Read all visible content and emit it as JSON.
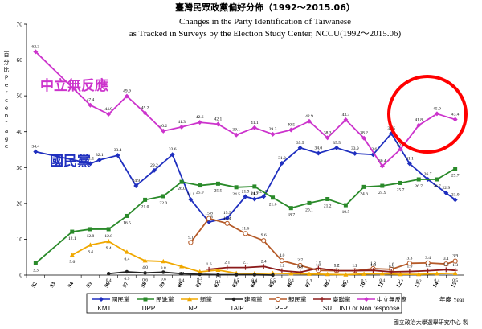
{
  "chart_data": {
    "type": "line",
    "title_zh": "臺灣民眾政黨偏好分佈（1992～2015.06）",
    "title_en_line1": "Changes in the Party Identification of Taiwanese",
    "title_en_line2": "as Tracked in Surveys by the Election Study Center, NCCU(1992～2015.06)",
    "ylabel_zh": "百分比",
    "ylabel_en": "Percentage",
    "xlabel": "年度 Year",
    "credit": "國立政治大學選舉研究中心 製",
    "ylim": [
      0,
      70
    ],
    "yticks": [
      "0",
      "10",
      "20",
      "30",
      "40",
      "50",
      "60",
      "70"
    ],
    "grid": false,
    "x": [
      "92",
      "93",
      "94",
      "95",
      "96",
      "97",
      "98",
      "99",
      "00",
      "01",
      "02",
      "03",
      "04",
      "05",
      "06",
      "07",
      "08",
      "09",
      "10",
      "11",
      "12",
      "13",
      "14",
      "15"
    ],
    "annotations": [
      {
        "text": "中立無反應",
        "color": "#cc33cc"
      },
      {
        "text": "國民黨",
        "color": "#1f2fbf"
      }
    ],
    "series": [
      {
        "name_zh": "國民黨",
        "name_en": "KMT",
        "color": "#1f2fbf",
        "marker": "diamond",
        "points": [
          [
            0,
            34.4
          ],
          [
            3,
            31.1
          ],
          [
            3.5,
            32.1
          ],
          [
            4.5,
            33.4
          ],
          [
            5.5,
            24.9
          ],
          [
            6.5,
            29.2
          ],
          [
            7.5,
            33.6
          ],
          [
            8.5,
            21.1
          ],
          [
            9.5,
            14.8
          ],
          [
            10.5,
            15.9
          ],
          [
            11.5,
            21.9
          ],
          [
            12,
            21.2
          ],
          [
            12.5,
            21.9
          ],
          [
            13.5,
            31.2
          ],
          [
            14.5,
            35.5
          ],
          [
            15.5,
            34.0
          ],
          [
            16.5,
            35.5
          ],
          [
            17.5,
            33.9
          ],
          [
            18.5,
            33.6
          ],
          [
            19.5,
            39.5
          ],
          [
            20.5,
            31.1
          ],
          [
            21.5,
            26.7
          ],
          [
            22.5,
            22.9
          ],
          [
            23,
            21.0
          ]
        ],
        "labels": [
          "34.4",
          "31.1",
          "32.1",
          "33.4",
          "24.9",
          "29.2",
          "33.6",
          "21.1",
          "14.8",
          "15.9",
          "21.9",
          "21.2",
          "21.9",
          "31.2",
          "35.5",
          "34.0",
          "35.5",
          "33.9",
          "33.6",
          "39.5",
          "31.1",
          "26.7",
          "22.9",
          "21.0"
        ]
      },
      {
        "name_zh": "民進黨",
        "name_en": "DPP",
        "color": "#2a8a2a",
        "marker": "square",
        "points": [
          [
            0,
            3.3
          ],
          [
            2,
            12.1
          ],
          [
            3,
            12.8
          ],
          [
            4,
            12.8
          ],
          [
            5,
            16.5
          ],
          [
            6,
            21.0
          ],
          [
            7,
            22.0
          ],
          [
            8,
            26.0
          ],
          [
            9,
            25.0
          ],
          [
            10,
            25.5
          ],
          [
            11,
            24.5
          ],
          [
            12,
            24.7
          ],
          [
            13,
            21.6
          ],
          [
            14,
            18.7
          ],
          [
            15,
            20.1
          ],
          [
            16,
            21.2
          ],
          [
            17,
            19.5
          ],
          [
            18,
            24.6
          ],
          [
            19,
            24.9
          ],
          [
            20,
            25.7
          ],
          [
            21,
            26.7
          ],
          [
            22,
            26.7
          ],
          [
            23,
            29.7
          ]
        ],
        "labels": [
          "3.3",
          "12.1",
          "12.8",
          "12.8",
          "16.5",
          "21.0",
          "22.0",
          "26.0",
          "25.0",
          "25.5",
          "24.5",
          "24.7",
          "21.6",
          "18.7",
          "20.1",
          "21.2",
          "19.5",
          "24.6",
          "24.9",
          "25.7",
          "26.7",
          "26.7",
          "29.7"
        ]
      },
      {
        "name_zh": "新黨",
        "name_en": "NP",
        "color": "#f0a800",
        "marker": "triangle",
        "points": [
          [
            2,
            5.6
          ],
          [
            3,
            8.4
          ],
          [
            4,
            9.4
          ],
          [
            5,
            6.4
          ],
          [
            6,
            4.0
          ],
          [
            7,
            3.8
          ],
          [
            8,
            2.4
          ],
          [
            9,
            0.9
          ],
          [
            10,
            1.4
          ],
          [
            11,
            0.5
          ],
          [
            12,
            0.4
          ],
          [
            13,
            0.5
          ],
          [
            14,
            0.4
          ],
          [
            15,
            0.3
          ],
          [
            16,
            0.2
          ],
          [
            17,
            0.1
          ],
          [
            18,
            0.3
          ],
          [
            19,
            0.4
          ],
          [
            20,
            0.2
          ],
          [
            21,
            0.2
          ],
          [
            22,
            0.4
          ],
          [
            23,
            0.5
          ]
        ],
        "labels": [
          "5.6",
          "8.4",
          "9.4",
          "6.4",
          "4.0",
          "3.8",
          "2.4",
          "0.9",
          "1.4",
          "0.5",
          "0.4",
          "0.5",
          "0.4",
          "0.3",
          "0.2",
          "0.1",
          "0.3",
          "0.4",
          "0.2",
          "0.2",
          "0.4",
          "0.5"
        ]
      },
      {
        "name_zh": "建國黨",
        "name_en": "TAIP",
        "color": "#222222",
        "marker": "circle",
        "points": [
          [
            4,
            0.4
          ],
          [
            5,
            0.9
          ],
          [
            6,
            0.6
          ],
          [
            7,
            0.8
          ],
          [
            8,
            0.4
          ],
          [
            9,
            0.2
          ],
          [
            10,
            0.1
          ],
          [
            11,
            0.1
          ],
          [
            12,
            0.1
          ],
          [
            13,
            0.0
          ]
        ],
        "labels": [
          "0.4",
          "0.9",
          "0.6",
          "0.8",
          "0.4",
          "0.2",
          "0.1",
          "0.1",
          "0.1",
          "0.0"
        ]
      },
      {
        "name_zh": "親民黨",
        "name_en": "PFP",
        "color": "#b55a28",
        "marker": "ocircle",
        "points": [
          [
            8.5,
            9.1
          ],
          [
            9.5,
            15.8
          ],
          [
            10.5,
            14.4
          ],
          [
            11.5,
            11.6
          ],
          [
            12.5,
            9.6
          ],
          [
            13.5,
            4.0
          ],
          [
            14.5,
            2.7
          ],
          [
            15.5,
            1.3
          ],
          [
            16.5,
            1.2
          ],
          [
            17.5,
            1.2
          ],
          [
            18.5,
            1.8
          ],
          [
            19.5,
            1.6
          ],
          [
            20.5,
            3.3
          ],
          [
            21.5,
            3.4
          ],
          [
            22.5,
            3.1
          ],
          [
            23,
            3.9
          ]
        ],
        "labels": [
          "9.1",
          "15.8",
          "14.4",
          "11.6",
          "9.6",
          "4.0",
          "2.7",
          "1.3",
          "1.2",
          "1.2",
          "1.8",
          "1.6",
          "3.3",
          "3.4",
          "3.1",
          "3.9"
        ]
      },
      {
        "name_zh": "臺聯黨",
        "name_en": "TSU",
        "color": "#8b1a1a",
        "marker": "plus",
        "points": [
          [
            9.5,
            1.6
          ],
          [
            10.5,
            2.1
          ],
          [
            11.5,
            2.1
          ],
          [
            12.5,
            2.4
          ],
          [
            13.5,
            1.2
          ],
          [
            14.5,
            0.8
          ],
          [
            15.5,
            1.9
          ],
          [
            16.5,
            1.2
          ],
          [
            17.5,
            1.2
          ],
          [
            18.5,
            1.3
          ],
          [
            19.5,
            0.9
          ],
          [
            20.5,
            1.0
          ],
          [
            21.5,
            1.2
          ],
          [
            22.5,
            1.5
          ],
          [
            23,
            1.3
          ]
        ],
        "labels": [
          "1.6",
          "2.1",
          "2.1",
          "2.4",
          "1.2",
          "0.8",
          "1.9",
          "1.2",
          "1.2",
          "1.3",
          "0.9",
          "1.0",
          "1.2",
          "1.5",
          "1.3"
        ]
      },
      {
        "name_zh": "中立無反應",
        "name_en": "IND or Non response",
        "color": "#cc33cc",
        "marker": "diamond",
        "points": [
          [
            0,
            62.3
          ],
          [
            3,
            47.4
          ],
          [
            4,
            44.9
          ],
          [
            5,
            49.9
          ],
          [
            6,
            45.2
          ],
          [
            7,
            40.2
          ],
          [
            8,
            41.3
          ],
          [
            9,
            42.6
          ],
          [
            10,
            42.1
          ],
          [
            11,
            39.1
          ],
          [
            12,
            41.1
          ],
          [
            13,
            39.3
          ],
          [
            14,
            40.5
          ],
          [
            15,
            42.9
          ],
          [
            16,
            38.3
          ],
          [
            17,
            43.3
          ],
          [
            18,
            38.2
          ],
          [
            19,
            30.4
          ],
          [
            20,
            35.1
          ],
          [
            21,
            41.8
          ],
          [
            22,
            45.0
          ],
          [
            23,
            43.4
          ]
        ],
        "labels": [
          "62.3",
          "47.4",
          "44.9",
          "49.9",
          "45.2",
          "40.2",
          "41.3",
          "42.6",
          "42.1",
          "39.1",
          "41.1",
          "39.3",
          "40.5",
          "42.9",
          "38.3",
          "43.3",
          "38.2",
          "30.4",
          "35.1",
          "41.8",
          "45.0",
          "43.4"
        ]
      }
    ]
  }
}
